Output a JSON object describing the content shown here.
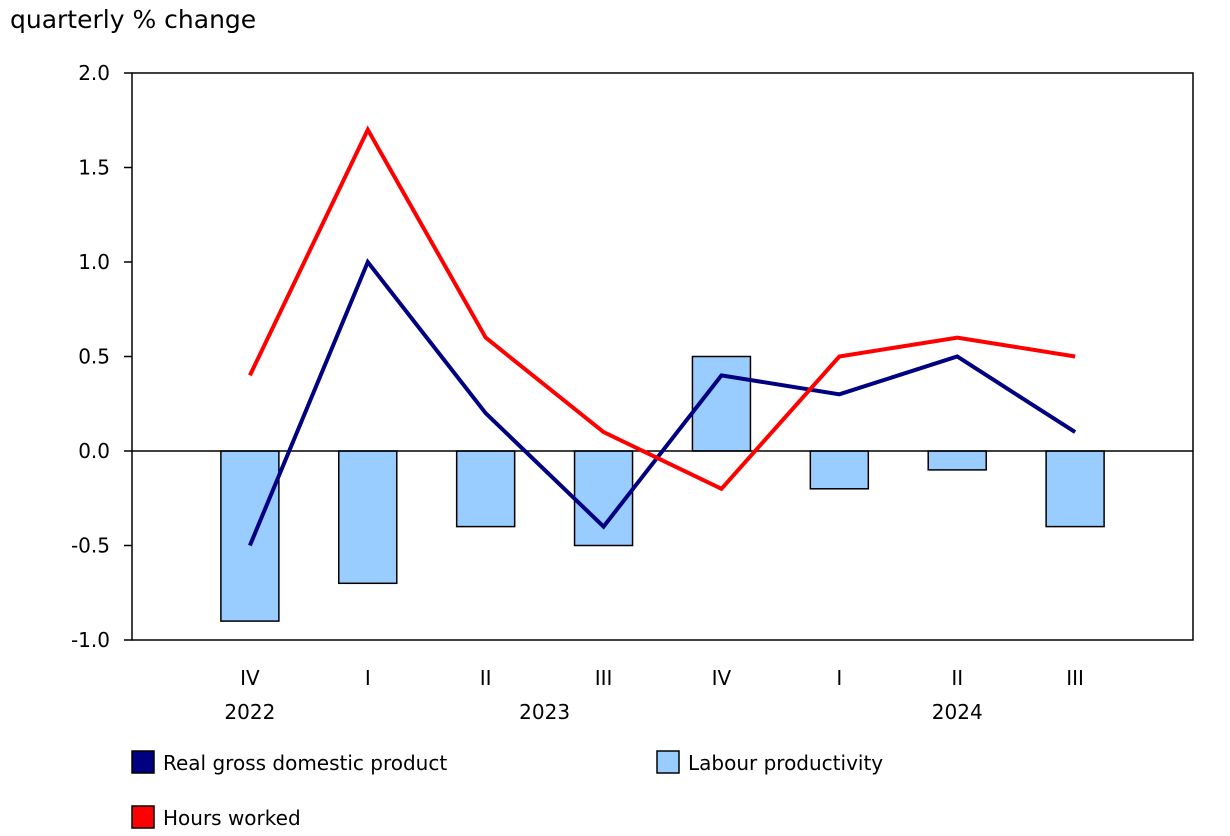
{
  "chart_data": {
    "type": "bar+line",
    "ylabel": "quarterly % change",
    "ylim": [
      -1.0,
      2.0
    ],
    "yticks": [
      "2.0",
      "1.5",
      "1.0",
      "0.5",
      "0.0",
      "-0.5",
      "-1.0"
    ],
    "ytick_values": [
      2.0,
      1.5,
      1.0,
      0.5,
      0.0,
      -0.5,
      -1.0
    ],
    "categories": [
      "IV",
      "I",
      "II",
      "III",
      "IV",
      "I",
      "II",
      "III"
    ],
    "years": [
      {
        "label": "2022",
        "from": 0,
        "to": 0
      },
      {
        "label": "2023",
        "from": 1,
        "to": 4
      },
      {
        "label": "2024",
        "from": 5,
        "to": 7
      }
    ],
    "grid": false,
    "legend_placement": "bottom",
    "series": [
      {
        "name": "Real gross domestic product",
        "kind": "line",
        "color": "#000080",
        "values": [
          -0.5,
          1.0,
          0.2,
          -0.4,
          0.4,
          0.3,
          0.5,
          0.1
        ]
      },
      {
        "name": "Labour productivity",
        "kind": "bar",
        "color": "#99ccff",
        "values": [
          -0.9,
          -0.7,
          -0.4,
          -0.5,
          0.5,
          -0.2,
          -0.1,
          -0.4
        ]
      },
      {
        "name": "Hours worked",
        "kind": "line",
        "color": "#ff0000",
        "values": [
          0.4,
          1.7,
          0.6,
          0.1,
          -0.2,
          0.5,
          0.6,
          0.5
        ]
      }
    ]
  }
}
